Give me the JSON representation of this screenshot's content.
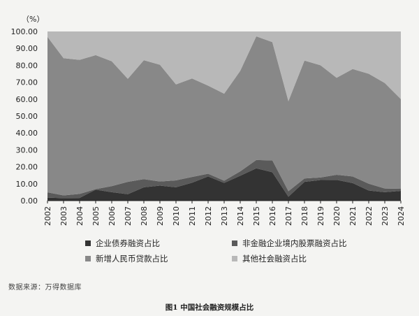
{
  "chart_data": {
    "type": "area",
    "stacked": true,
    "unit_label": "（%）",
    "ylim": [
      0,
      100
    ],
    "y_ticks": [
      "0.00",
      "10.00",
      "20.00",
      "30.00",
      "40.00",
      "50.00",
      "60.00",
      "70.00",
      "80.00",
      "90.00",
      "100.00"
    ],
    "categories": [
      "2002",
      "2003",
      "2004",
      "2005",
      "2006",
      "2007",
      "2008",
      "2009",
      "2010",
      "2011",
      "2012",
      "2013",
      "2014",
      "2015",
      "2016",
      "2017",
      "2018",
      "2019",
      "2020",
      "2021",
      "2022",
      "2023",
      "2024"
    ],
    "series": [
      {
        "name": "企业债券融资占比",
        "color": "#333333",
        "values": [
          1.8,
          1.5,
          1.6,
          6.5,
          5.0,
          3.8,
          7.9,
          8.9,
          7.9,
          10.6,
          14.3,
          10.5,
          14.7,
          19.1,
          16.8,
          2.3,
          11.1,
          12.2,
          12.3,
          10.4,
          6.0,
          5.0,
          5.8
        ]
      },
      {
        "name": "非金融企业境内股票融资占比",
        "color": "#5a5a5a",
        "values": [
          3.1,
          1.6,
          2.4,
          0.3,
          3.6,
          7.3,
          4.8,
          2.4,
          4.1,
          3.4,
          1.6,
          1.3,
          2.6,
          4.9,
          7.0,
          3.3,
          2.0,
          1.5,
          3.0,
          3.9,
          4.0,
          2.2,
          1.2
        ]
      },
      {
        "name": "新增人民币贷款占比",
        "color": "#888888",
        "values": [
          91.9,
          81.1,
          79.2,
          79.2,
          73.8,
          60.9,
          70.3,
          69.0,
          56.7,
          58.2,
          52.1,
          51.4,
          59.4,
          73.1,
          69.9,
          53.2,
          69.7,
          66.3,
          57.3,
          63.5,
          65.0,
          62.3,
          53.0
        ]
      },
      {
        "name": "其他社会融资占比",
        "color": "#b8b8b8",
        "values": [
          3.2,
          15.8,
          16.8,
          14.0,
          17.6,
          28.0,
          17.0,
          19.7,
          31.3,
          27.8,
          32.0,
          36.8,
          23.3,
          2.9,
          6.3,
          41.2,
          17.2,
          20.0,
          27.4,
          22.2,
          25.0,
          30.5,
          40.0
        ]
      }
    ]
  },
  "source_note": "数据来源：万得数据库",
  "caption": "图1  中国社会融资规模占比"
}
